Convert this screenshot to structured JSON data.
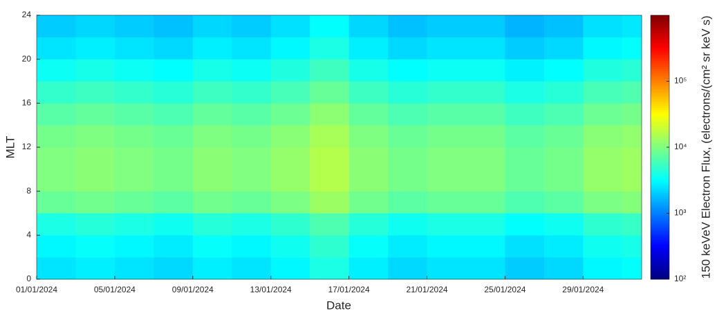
{
  "chart_data": {
    "type": "heatmap",
    "xlabel": "Date",
    "ylabel": "MLT",
    "colorbar_label": "150 keVeV Electron Flux, (electrons/(cm² sr keV s)",
    "xbins": [
      0,
      2,
      4,
      6,
      8,
      10,
      12,
      14,
      16,
      18,
      20,
      22,
      24,
      26,
      28,
      30,
      31
    ],
    "ybins": [
      0,
      2,
      4,
      6,
      8,
      10,
      12,
      14,
      16,
      18,
      20,
      22,
      24
    ],
    "values": [
      [
        2500,
        2750,
        2500,
        2250,
        2750,
        2500,
        3000,
        4000,
        2750,
        2250,
        2500,
        2500,
        2000,
        2250,
        3000,
        3250
      ],
      [
        3000,
        3300,
        3000,
        2700,
        3300,
        3000,
        3600,
        4800,
        3300,
        2700,
        3000,
        3000,
        2400,
        2700,
        3600,
        3900
      ],
      [
        4000,
        4400,
        4000,
        3600,
        4400,
        4000,
        4800,
        6400,
        4400,
        3600,
        4000,
        4000,
        3200,
        3600,
        4800,
        5200
      ],
      [
        8000,
        8800,
        8000,
        7200,
        8800,
        8000,
        9600,
        12800,
        8800,
        7200,
        8000,
        8000,
        6400,
        7200,
        9600,
        10400
      ],
      [
        10000,
        11000,
        10000,
        9000,
        11000,
        10000,
        12000,
        16000,
        11000,
        9000,
        10000,
        10000,
        8000,
        9000,
        12000,
        13000
      ],
      [
        10000,
        11000,
        10000,
        9000,
        11000,
        10000,
        12000,
        16000,
        11000,
        9000,
        10000,
        10000,
        8000,
        9000,
        12000,
        13000
      ],
      [
        9000,
        9900,
        9000,
        8100,
        9900,
        9000,
        10800,
        14400,
        9900,
        8100,
        9000,
        9000,
        7200,
        8100,
        10800,
        11700
      ],
      [
        7000,
        7700,
        7000,
        6300,
        7700,
        7000,
        8400,
        11200,
        7700,
        6300,
        7000,
        7000,
        5600,
        6300,
        8400,
        9100
      ],
      [
        5000,
        5500,
        5000,
        4500,
        5500,
        5000,
        6000,
        8000,
        5500,
        4500,
        5000,
        5000,
        4000,
        4500,
        6000,
        6500
      ],
      [
        3500,
        3850,
        3500,
        3150,
        3850,
        3500,
        4200,
        5600,
        3850,
        3150,
        3500,
        3500,
        2800,
        3150,
        4200,
        4550
      ],
      [
        2500,
        2750,
        2500,
        2250,
        2750,
        2500,
        3000,
        4000,
        2750,
        2250,
        2500,
        2500,
        2000,
        2250,
        3000,
        3250
      ],
      [
        2000,
        2200,
        2000,
        1800,
        2200,
        2000,
        2400,
        3200,
        2200,
        1800,
        2000,
        2000,
        1600,
        1800,
        2400,
        2600
      ]
    ],
    "xlim": [
      0,
      31
    ],
    "xticks": [
      {
        "value": 0,
        "label": "01/01/2024"
      },
      {
        "value": 4,
        "label": "05/01/2024"
      },
      {
        "value": 8,
        "label": "09/01/2024"
      },
      {
        "value": 12,
        "label": "13/01/2024"
      },
      {
        "value": 16,
        "label": "17/01/2024"
      },
      {
        "value": 20,
        "label": "21/01/2024"
      },
      {
        "value": 24,
        "label": "25/01/2024"
      },
      {
        "value": 28,
        "label": "29/01/2024"
      }
    ],
    "ylim": [
      0,
      24
    ],
    "yticks": [
      0,
      4,
      8,
      12,
      16,
      20,
      24
    ],
    "clim": [
      100,
      1000000
    ],
    "clog": true,
    "colormap": "jet",
    "cticks": [
      {
        "value": 100,
        "label": "10²"
      },
      {
        "value": 1000,
        "label": "10³"
      },
      {
        "value": 10000,
        "label": "10⁴"
      },
      {
        "value": 100000,
        "label": "10⁵"
      }
    ]
  }
}
